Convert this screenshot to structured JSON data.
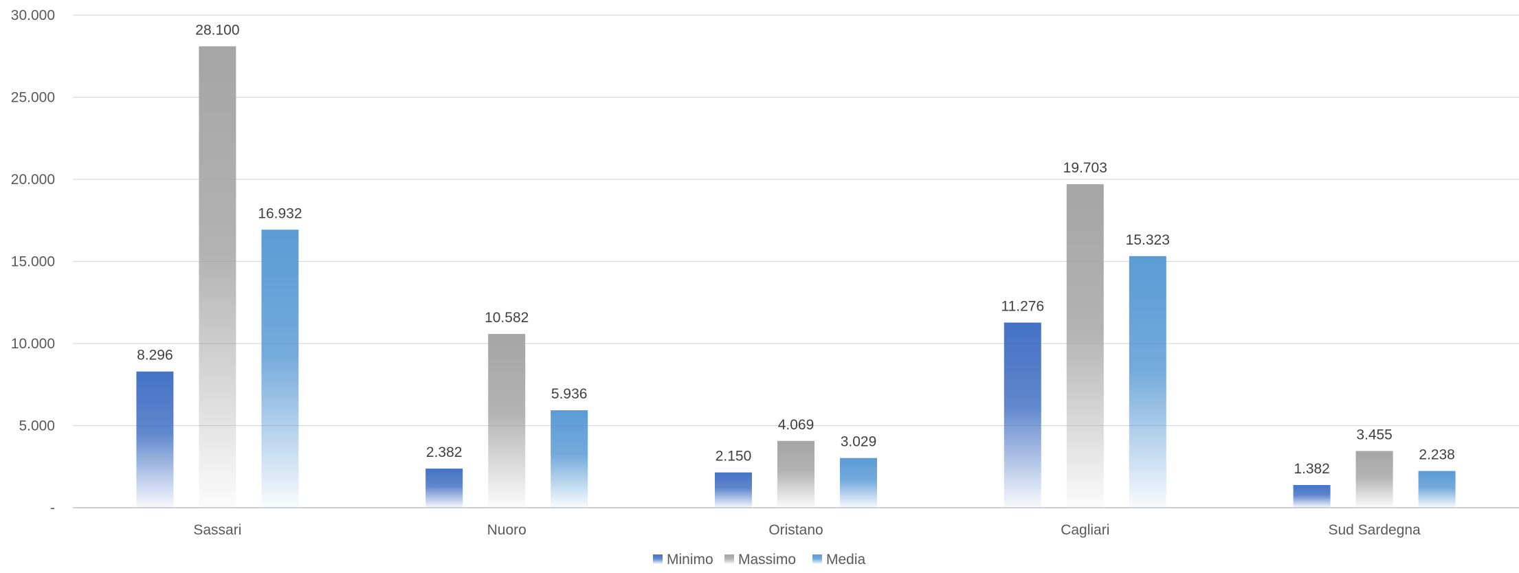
{
  "chart_data": {
    "type": "bar",
    "title": "",
    "xlabel": "",
    "ylabel": "",
    "categories": [
      "Sassari",
      "Nuoro",
      "Oristano",
      "Cagliari",
      "Sud Sardegna"
    ],
    "series": [
      {
        "name": "Minimo",
        "values": [
          8296,
          2382,
          2150,
          11276,
          1382
        ],
        "labels": [
          "8.296",
          "2.382",
          "2.150",
          "11.276",
          "1.382"
        ],
        "color": "#4472C4"
      },
      {
        "name": "Massimo",
        "values": [
          28100,
          10582,
          4069,
          19703,
          3455
        ],
        "labels": [
          "28.100",
          "10.582",
          "4.069",
          "19.703",
          "3.455"
        ],
        "color": "#A5A5A5"
      },
      {
        "name": "Media",
        "values": [
          16932,
          5936,
          3029,
          15323,
          2238
        ],
        "labels": [
          "16.932",
          "5.936",
          "3.029",
          "15.323",
          "2.238"
        ],
        "color": "#5B9BD5"
      }
    ],
    "ylim": [
      0,
      30000
    ],
    "yticks": [
      0,
      5000,
      10000,
      15000,
      20000,
      25000,
      30000
    ],
    "ytick_labels": [
      "-",
      "5.000",
      "10.000",
      "15.000",
      "20.000",
      "25.000",
      "30.000"
    ],
    "grid": true,
    "legend": "bottom-center"
  }
}
